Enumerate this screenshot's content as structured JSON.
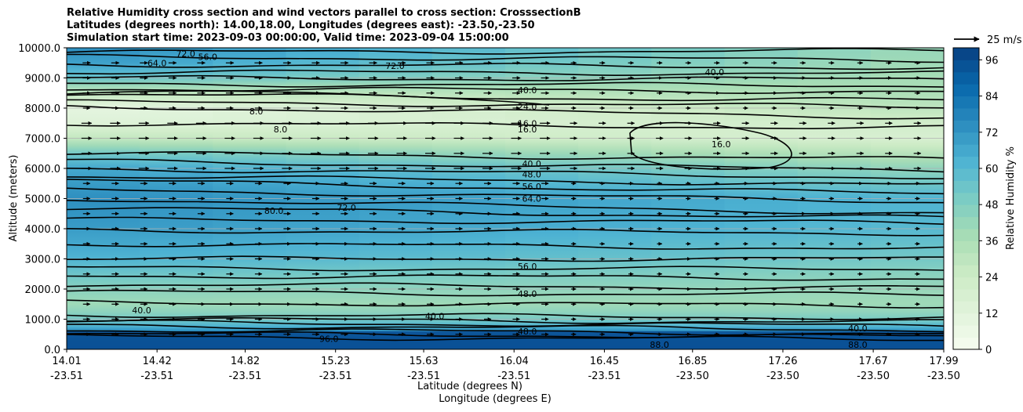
{
  "chart_data": {
    "type": "heatmap",
    "title_lines": [
      "Relative Humidity cross section and wind vectors parallel to cross section: CrosssectionB",
      "Latitudes (degrees north): 14.00,18.00, Longitudes (degrees east): -23.50,-23.50",
      "Simulation start time: 2023-09-03 00:00:00, Valid time: 2023-09-04 15:00:00"
    ],
    "xlabel_lines": [
      "Latitude (degrees N)",
      "Longitude (degrees E)"
    ],
    "ylabel": "Altitude (meters)",
    "colorbar_label": "Relative Humidity %",
    "colorbar_ticks": [
      "0",
      "12",
      "24",
      "36",
      "48",
      "60",
      "72",
      "84",
      "96"
    ],
    "colorbar_range": [
      0,
      100
    ],
    "colorbar_colors": [
      "#f7fcf0",
      "#e0f3db",
      "#ccebc5",
      "#a8ddb5",
      "#7bccc4",
      "#4eb3d3",
      "#2b8cbe",
      "#0868ac",
      "#084081"
    ],
    "quiver_key_label": "25 m/s",
    "ylim": [
      0,
      10000
    ],
    "y_ticks": [
      "0.0",
      "1000.0",
      "2000.0",
      "3000.0",
      "4000.0",
      "5000.0",
      "6000.0",
      "7000.0",
      "8000.0",
      "9000.0",
      "10000.0"
    ],
    "x_ticks": [
      {
        "lat": "14.01",
        "lon": "-23.51"
      },
      {
        "lat": "14.42",
        "lon": "-23.51"
      },
      {
        "lat": "14.82",
        "lon": "-23.51"
      },
      {
        "lat": "15.23",
        "lon": "-23.51"
      },
      {
        "lat": "15.63",
        "lon": "-23.51"
      },
      {
        "lat": "16.04",
        "lon": "-23.51"
      },
      {
        "lat": "16.45",
        "lon": "-23.51"
      },
      {
        "lat": "16.85",
        "lon": "-23.50"
      },
      {
        "lat": "17.26",
        "lon": "-23.50"
      },
      {
        "lat": "17.67",
        "lon": "-23.50"
      },
      {
        "lat": "17.99",
        "lon": "-23.50"
      }
    ],
    "rh_profile_left": [
      [
        0,
        92
      ],
      [
        400,
        90
      ],
      [
        800,
        60
      ],
      [
        1100,
        48
      ],
      [
        1500,
        40
      ],
      [
        2000,
        46
      ],
      [
        2500,
        54
      ],
      [
        3000,
        62
      ],
      [
        4000,
        70
      ],
      [
        5000,
        74
      ],
      [
        6000,
        66
      ],
      [
        6500,
        52
      ],
      [
        7000,
        28
      ],
      [
        7500,
        14
      ],
      [
        8000,
        10
      ],
      [
        8500,
        28
      ],
      [
        9000,
        55
      ],
      [
        9500,
        68
      ],
      [
        10000,
        74
      ]
    ],
    "rh_profile_right": [
      [
        0,
        92
      ],
      [
        400,
        90
      ],
      [
        800,
        58
      ],
      [
        1100,
        46
      ],
      [
        1500,
        40
      ],
      [
        2000,
        42
      ],
      [
        2500,
        46
      ],
      [
        3000,
        52
      ],
      [
        4000,
        60
      ],
      [
        5000,
        62
      ],
      [
        6000,
        44
      ],
      [
        6500,
        32
      ],
      [
        7000,
        18
      ],
      [
        7500,
        22
      ],
      [
        8000,
        30
      ],
      [
        8500,
        36
      ],
      [
        9000,
        38
      ],
      [
        9500,
        40
      ],
      [
        10000,
        42
      ]
    ],
    "contour_levels_labeled": [
      {
        "text": "40.0",
        "lat": 16.1,
        "alt": 8600
      },
      {
        "text": "24.0",
        "lat": 16.1,
        "alt": 8050
      },
      {
        "text": "16.0",
        "lat": 16.1,
        "alt": 7500
      },
      {
        "text": "16.0",
        "lat": 16.1,
        "alt": 7300
      },
      {
        "text": "40.0",
        "lat": 16.12,
        "alt": 6150
      },
      {
        "text": "48.0",
        "lat": 16.12,
        "alt": 5800
      },
      {
        "text": "56.0",
        "lat": 16.12,
        "alt": 5400
      },
      {
        "text": "64.0",
        "lat": 16.12,
        "alt": 5000
      },
      {
        "text": "56.0",
        "lat": 16.1,
        "alt": 2750
      },
      {
        "text": "48.0",
        "lat": 16.1,
        "alt": 1850
      },
      {
        "text": "48.0",
        "lat": 16.1,
        "alt": 600
      },
      {
        "text": "56.0",
        "lat": 14.65,
        "alt": 9700
      },
      {
        "text": "64.0",
        "lat": 14.42,
        "alt": 9500
      },
      {
        "text": "72.0",
        "lat": 14.55,
        "alt": 9800
      },
      {
        "text": "72.0",
        "lat": 15.5,
        "alt": 9400
      },
      {
        "text": "8.0",
        "lat": 14.87,
        "alt": 7900
      },
      {
        "text": "8.0",
        "lat": 14.98,
        "alt": 7300
      },
      {
        "text": "72.0",
        "lat": 15.28,
        "alt": 4700
      },
      {
        "text": "80.0",
        "lat": 14.95,
        "alt": 4600
      },
      {
        "text": "40.0",
        "lat": 16.95,
        "alt": 9200
      },
      {
        "text": "16.0",
        "lat": 16.98,
        "alt": 6800
      },
      {
        "text": "40.0",
        "lat": 17.6,
        "alt": 700
      },
      {
        "text": "88.0",
        "lat": 16.7,
        "alt": 150
      },
      {
        "text": "88.0",
        "lat": 17.6,
        "alt": 150
      },
      {
        "text": "96.0",
        "lat": 15.2,
        "alt": 350
      },
      {
        "text": "40.0",
        "lat": 14.35,
        "alt": 1300
      },
      {
        "text": "40.0",
        "lat": 15.68,
        "alt": 1100
      }
    ]
  }
}
